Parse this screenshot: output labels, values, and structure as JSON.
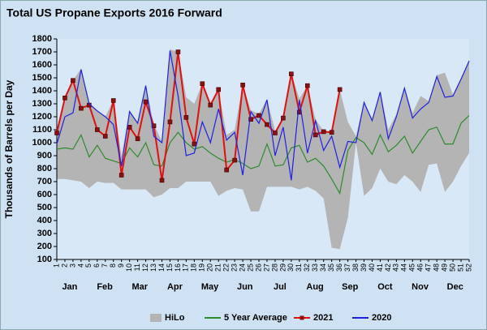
{
  "chart_data": {
    "type": "line",
    "title": "Total US Propane Exports 2016 Forward",
    "y_label": "Thousands of Barrels per Day",
    "categories": [
      "1",
      "2",
      "3",
      "4",
      "5",
      "6",
      "7",
      "8",
      "9",
      "10",
      "11",
      "12",
      "13",
      "14",
      "15",
      "16",
      "17",
      "18",
      "19",
      "20",
      "21",
      "22",
      "23",
      "24",
      "25",
      "26",
      "27",
      "28",
      "29",
      "30",
      "31",
      "32",
      "33",
      "34",
      "35",
      "36",
      "37",
      "38",
      "39",
      "40",
      "41",
      "42",
      "43",
      "44",
      "45",
      "46",
      "47",
      "48",
      "49",
      "50",
      "51",
      "52"
    ],
    "months": [
      "Jan",
      "Feb",
      "Mar",
      "Apr",
      "May",
      "Jun",
      "Jul",
      "Aug",
      "Sep",
      "Oct",
      "Nov",
      "Dec"
    ],
    "ylim": [
      100,
      1800
    ],
    "yticks": [
      100,
      200,
      300,
      400,
      500,
      600,
      700,
      800,
      900,
      1000,
      1100,
      1200,
      1300,
      1400,
      1500,
      1600,
      1700,
      1800
    ],
    "grid": false,
    "hilo": {
      "name": "HiLo",
      "color": "#b4b4b4",
      "low": [
        720,
        720,
        710,
        700,
        650,
        700,
        690,
        690,
        640,
        640,
        640,
        640,
        580,
        600,
        650,
        650,
        700,
        700,
        700,
        700,
        590,
        630,
        650,
        640,
        470,
        470,
        660,
        660,
        660,
        660,
        640,
        660,
        630,
        570,
        190,
        180,
        420,
        1000,
        590,
        650,
        800,
        700,
        680,
        750,
        700,
        620,
        830,
        840,
        620,
        700,
        820,
        920
      ],
      "high": [
        1080,
        1350,
        1480,
        1570,
        1300,
        1250,
        1200,
        1330,
        900,
        1250,
        1150,
        1440,
        1140,
        1010,
        1720,
        1700,
        1350,
        1300,
        1460,
        1300,
        1410,
        1060,
        1100,
        1450,
        1250,
        1220,
        1340,
        1090,
        1200,
        1530,
        1340,
        1440,
        1180,
        1090,
        1090,
        1410,
        1160,
        1050,
        1320,
        1180,
        1400,
        1100,
        1220,
        1430,
        1230,
        1360,
        1320,
        1520,
        1540,
        1370,
        1500,
        1640
      ]
    },
    "series": [
      {
        "name": "5 Year Average",
        "color": "#2e8b2e",
        "values": [
          950,
          960,
          950,
          1060,
          890,
          980,
          880,
          860,
          840,
          960,
          890,
          1000,
          830,
          820,
          1000,
          1080,
          1000,
          950,
          970,
          920,
          880,
          850,
          870,
          840,
          800,
          820,
          990,
          820,
          830,
          960,
          980,
          850,
          880,
          820,
          720,
          610,
          940,
          1040,
          1000,
          910,
          1060,
          930,
          980,
          1050,
          920,
          1010,
          1100,
          1120,
          990,
          990,
          1150,
          1210
        ]
      },
      {
        "name": "2021",
        "color": "#e01010",
        "markers": true,
        "values": [
          1075,
          1345,
          1480,
          1265,
          1290,
          1100,
          1050,
          1325,
          750,
          1120,
          1030,
          1315,
          1130,
          710,
          1160,
          1700,
          1195,
          990,
          1455,
          1290,
          1410,
          790,
          865,
          1445,
          1180,
          1210,
          1140,
          1075,
          1190,
          1530,
          1235,
          1440,
          1060,
          1085,
          1080,
          1410,
          null,
          null,
          null,
          null,
          null,
          null,
          null,
          null,
          null,
          null,
          null,
          null,
          null,
          null,
          null,
          null
        ]
      },
      {
        "name": "2020",
        "color": "#2020e0",
        "values": [
          990,
          1200,
          1230,
          1565,
          1300,
          1245,
          1200,
          1140,
          820,
          1240,
          1150,
          1440,
          1050,
          1000,
          1710,
          1360,
          900,
          920,
          1160,
          1000,
          1260,
          1020,
          1080,
          750,
          1240,
          1150,
          1330,
          900,
          1120,
          710,
          1330,
          920,
          1170,
          940,
          1050,
          810,
          1010,
          1000,
          1310,
          1170,
          1390,
          1030,
          1200,
          1420,
          1190,
          1260,
          1310,
          1510,
          1350,
          1360,
          1490,
          1630
        ]
      }
    ]
  }
}
